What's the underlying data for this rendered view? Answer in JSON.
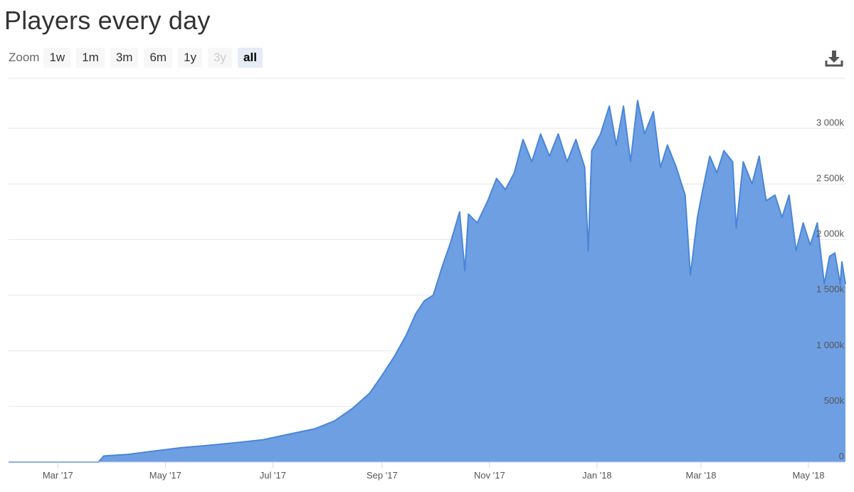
{
  "title": "Players every day",
  "zoom": {
    "label": "Zoom",
    "buttons": [
      {
        "label": "1w",
        "state": "normal"
      },
      {
        "label": "1m",
        "state": "normal"
      },
      {
        "label": "3m",
        "state": "normal"
      },
      {
        "label": "6m",
        "state": "normal"
      },
      {
        "label": "1y",
        "state": "normal"
      },
      {
        "label": "3y",
        "state": "disabled"
      },
      {
        "label": "all",
        "state": "active"
      }
    ]
  },
  "download_icon": "download-icon",
  "colors": {
    "fill": "#6e9fe3",
    "line": "#4a86d8",
    "grid": "#e6e6e6"
  },
  "chart_data": {
    "type": "area",
    "title": "Players every day",
    "x_ticks": [
      "Mar '17",
      "May '17",
      "Jul '17",
      "Sep '17",
      "Nov '17",
      "Jan '18",
      "Mar '18",
      "May '18"
    ],
    "y_ticks": [
      "0",
      "500k",
      "1 000k",
      "1 500k",
      "2 000k",
      "2 500k",
      "3 000k"
    ],
    "ylim": [
      0,
      3450000
    ],
    "xlim": [
      "2017-02-01",
      "2018-05-22"
    ],
    "grid": true,
    "legend": "none",
    "series": [
      {
        "values": [
          [
            "2017-02-01",
            0
          ],
          [
            "2017-03-24",
            0
          ],
          [
            "2017-03-27",
            55000
          ],
          [
            "2017-04-10",
            70000
          ],
          [
            "2017-04-25",
            100000
          ],
          [
            "2017-05-10",
            130000
          ],
          [
            "2017-05-25",
            150000
          ],
          [
            "2017-06-10",
            175000
          ],
          [
            "2017-06-25",
            200000
          ],
          [
            "2017-07-10",
            250000
          ],
          [
            "2017-07-25",
            300000
          ],
          [
            "2017-08-05",
            370000
          ],
          [
            "2017-08-15",
            480000
          ],
          [
            "2017-08-25",
            620000
          ],
          [
            "2017-09-01",
            780000
          ],
          [
            "2017-09-08",
            950000
          ],
          [
            "2017-09-15",
            1150000
          ],
          [
            "2017-09-20",
            1330000
          ],
          [
            "2017-09-25",
            1450000
          ],
          [
            "2017-09-30",
            1500000
          ],
          [
            "2017-10-05",
            1750000
          ],
          [
            "2017-10-10",
            1980000
          ],
          [
            "2017-10-15",
            2250000
          ],
          [
            "2017-10-18",
            1720000
          ],
          [
            "2017-10-20",
            2230000
          ],
          [
            "2017-10-25",
            2150000
          ],
          [
            "2017-10-31",
            2350000
          ],
          [
            "2017-11-05",
            2550000
          ],
          [
            "2017-11-10",
            2450000
          ],
          [
            "2017-11-15",
            2600000
          ],
          [
            "2017-11-20",
            2900000
          ],
          [
            "2017-11-25",
            2700000
          ],
          [
            "2017-11-30",
            2950000
          ],
          [
            "2017-12-05",
            2750000
          ],
          [
            "2017-12-10",
            2950000
          ],
          [
            "2017-12-15",
            2700000
          ],
          [
            "2017-12-20",
            2900000
          ],
          [
            "2017-12-25",
            2650000
          ],
          [
            "2017-12-27",
            1900000
          ],
          [
            "2017-12-29",
            2800000
          ],
          [
            "2018-01-03",
            2950000
          ],
          [
            "2018-01-08",
            3200000
          ],
          [
            "2018-01-12",
            2850000
          ],
          [
            "2018-01-16",
            3200000
          ],
          [
            "2018-01-20",
            2700000
          ],
          [
            "2018-01-24",
            3250000
          ],
          [
            "2018-01-28",
            2950000
          ],
          [
            "2018-02-02",
            3150000
          ],
          [
            "2018-02-06",
            2650000
          ],
          [
            "2018-02-10",
            2850000
          ],
          [
            "2018-02-15",
            2650000
          ],
          [
            "2018-02-20",
            2400000
          ],
          [
            "2018-02-23",
            1680000
          ],
          [
            "2018-02-27",
            2200000
          ],
          [
            "2018-03-02",
            2450000
          ],
          [
            "2018-03-06",
            2750000
          ],
          [
            "2018-03-10",
            2600000
          ],
          [
            "2018-03-14",
            2800000
          ],
          [
            "2018-03-19",
            2700000
          ],
          [
            "2018-03-21",
            2100000
          ],
          [
            "2018-03-25",
            2700000
          ],
          [
            "2018-03-30",
            2500000
          ],
          [
            "2018-04-03",
            2750000
          ],
          [
            "2018-04-07",
            2350000
          ],
          [
            "2018-04-12",
            2400000
          ],
          [
            "2018-04-16",
            2200000
          ],
          [
            "2018-04-20",
            2400000
          ],
          [
            "2018-04-24",
            1900000
          ],
          [
            "2018-04-28",
            2150000
          ],
          [
            "2018-05-02",
            1950000
          ],
          [
            "2018-05-06",
            2150000
          ],
          [
            "2018-05-10",
            1600000
          ],
          [
            "2018-05-13",
            1850000
          ],
          [
            "2018-05-16",
            1880000
          ],
          [
            "2018-05-19",
            1600000
          ],
          [
            "2018-05-20",
            1800000
          ],
          [
            "2018-05-22",
            1600000
          ]
        ]
      }
    ]
  }
}
